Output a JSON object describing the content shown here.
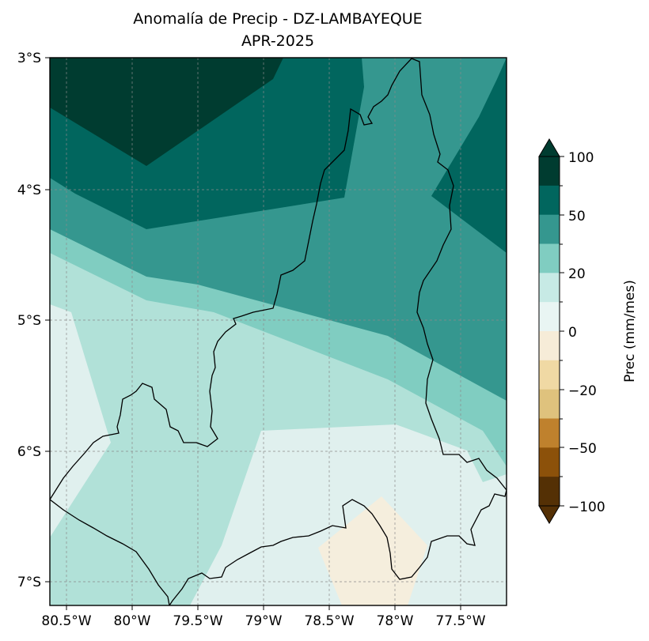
{
  "map": {
    "title": "Anomalía de Precip - DZ-LAMBAYEQUE",
    "subtitle": "APR-2025",
    "lat_labels": [
      "3°S",
      "4°S",
      "5°S",
      "6°S",
      "7°S"
    ],
    "lon_labels": [
      "80.5°W",
      "80°W",
      "79.5°W",
      "79°W",
      "78.5°W",
      "78°W",
      "77.5°W"
    ],
    "gridlines": true
  },
  "colorbar": {
    "label": "Prec (mm/mes)",
    "tick_labels": [
      "100",
      "50",
      "20",
      "0",
      "−20",
      "−50",
      "−100"
    ],
    "colors_top_to_bottom": [
      "#003c30",
      "#01665e",
      "#35978f",
      "#80cdc1",
      "#c7eae5",
      "#e9f5f3",
      "#f6ecd8",
      "#f0d9a4",
      "#dfc27d",
      "#bf812d",
      "#8c510a",
      "#543005"
    ]
  },
  "palette": {
    "darkest": "#003c30",
    "dark": "#01665e",
    "mid": "#35978f",
    "light": "#80cdc1",
    "pale": "#b1e1d8",
    "whitish": "#e0f0ee",
    "cream": "#f5eedd"
  }
}
